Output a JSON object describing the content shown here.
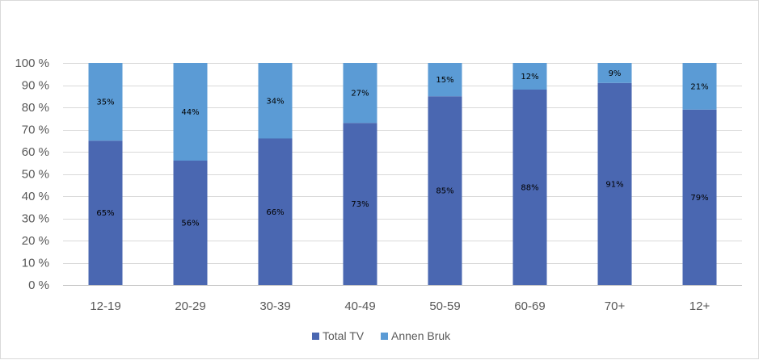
{
  "chart_data": {
    "type": "bar",
    "stacked": true,
    "percent_stacked": true,
    "categories": [
      "12-19",
      "20-29",
      "30-39",
      "40-49",
      "50-59",
      "60-69",
      "70+",
      "12+"
    ],
    "series": [
      {
        "name": "Total TV",
        "color": "#4a67b1",
        "values": [
          65,
          56,
          66,
          73,
          85,
          88,
          91,
          79
        ],
        "labels": [
          "65%",
          "56%",
          "66%",
          "73%",
          "85%",
          "88%",
          "91%",
          "79%"
        ]
      },
      {
        "name": "Annen Bruk",
        "color": "#5b9bd5",
        "values": [
          35,
          44,
          34,
          27,
          15,
          12,
          9,
          21
        ],
        "labels": [
          "35%",
          "44%",
          "34%",
          "27%",
          "15%",
          "12%",
          "9%",
          "21%"
        ]
      }
    ],
    "y_ticks": [
      "0 %",
      "10 %",
      "20 %",
      "30 %",
      "40 %",
      "50 %",
      "60 %",
      "70 %",
      "80 %",
      "90 %",
      "100 %"
    ],
    "ylim": [
      0,
      100
    ],
    "grid": true,
    "legend_position": "bottom",
    "title": "",
    "xlabel": "",
    "ylabel": ""
  }
}
